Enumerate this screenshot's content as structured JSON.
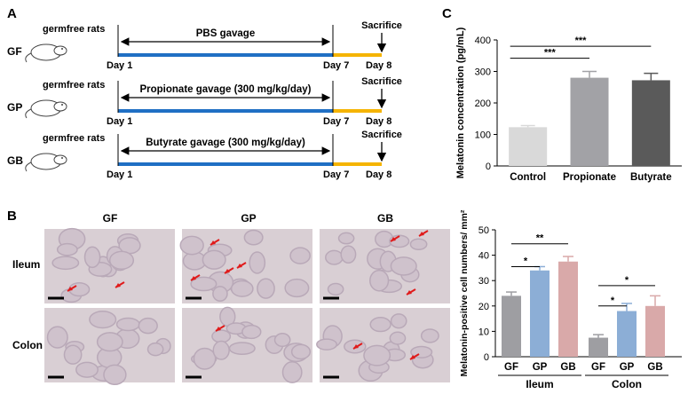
{
  "panels": {
    "a": "A",
    "b": "B",
    "c": "C"
  },
  "schematic": {
    "rows": [
      {
        "group": "GF",
        "subject": "germfree rats",
        "treatment": "PBS gavage",
        "start": "Day 1",
        "mid": "Day 7",
        "end": "Day 8",
        "event": "Sacrifice"
      },
      {
        "group": "GP",
        "subject": "germfree rats",
        "treatment": "Propionate gavage (300 mg/kg/day)",
        "start": "Day 1",
        "mid": "Day 7",
        "end": "Day 8",
        "event": "Sacrifice"
      },
      {
        "group": "GB",
        "subject": "germfree rats",
        "treatment": "Butyrate gavage (300 mg/kg/day)",
        "start": "Day 1",
        "mid": "Day 7",
        "end": "Day 8",
        "event": "Sacrifice"
      }
    ],
    "colors": {
      "gavage": "#1f6fc4",
      "post": "#f5b400"
    }
  },
  "histology": {
    "columns": [
      "GF",
      "GP",
      "GB"
    ],
    "rows": [
      "Ileum",
      "Colon"
    ],
    "colors": {
      "tissue": "#d9cfd4",
      "crypt": "#cfc2cc",
      "arrow": "#e01a1a"
    }
  },
  "chart_data": [
    {
      "type": "bar",
      "panel": "C",
      "categories": [
        "Control",
        "Propionate",
        "Butyrate"
      ],
      "values": [
        123,
        280,
        272
      ],
      "errors": [
        5,
        20,
        22
      ],
      "ylabel": "Melatonin concentration (pg/mL)",
      "ylim": [
        0,
        400
      ],
      "yticks": [
        0,
        100,
        200,
        300,
        400
      ],
      "colors": [
        "#d9d9d9",
        "#a2a2a6",
        "#5a5a5a"
      ],
      "significance": [
        {
          "from": 0,
          "to": 2,
          "label": "***"
        },
        {
          "from": 0,
          "to": 1,
          "label": "***"
        }
      ]
    },
    {
      "type": "bar",
      "panel": "B",
      "groups": [
        "Ileum",
        "Colon"
      ],
      "categories": [
        "GF",
        "GP",
        "GB"
      ],
      "series": [
        {
          "name": "Ileum",
          "values": [
            24,
            34,
            37.5
          ],
          "errors": [
            1.5,
            1.5,
            2
          ]
        },
        {
          "name": "Colon",
          "values": [
            7.5,
            18,
            20
          ],
          "errors": [
            1.2,
            3,
            4
          ]
        }
      ],
      "ylabel": "Melatonin-positive cell numbers/ mm²",
      "ylim": [
        0,
        50
      ],
      "yticks": [
        0,
        10,
        20,
        30,
        40,
        50
      ],
      "colors": [
        "#9e9ea2",
        "#8caed6",
        "#d9a9a9"
      ],
      "significance": [
        {
          "group": 0,
          "from": 0,
          "to": 2,
          "label": "**"
        },
        {
          "group": 0,
          "from": 0,
          "to": 1,
          "label": "*"
        },
        {
          "group": 1,
          "from": 0,
          "to": 2,
          "label": "*"
        },
        {
          "group": 1,
          "from": 0,
          "to": 1,
          "label": "*"
        }
      ]
    }
  ]
}
